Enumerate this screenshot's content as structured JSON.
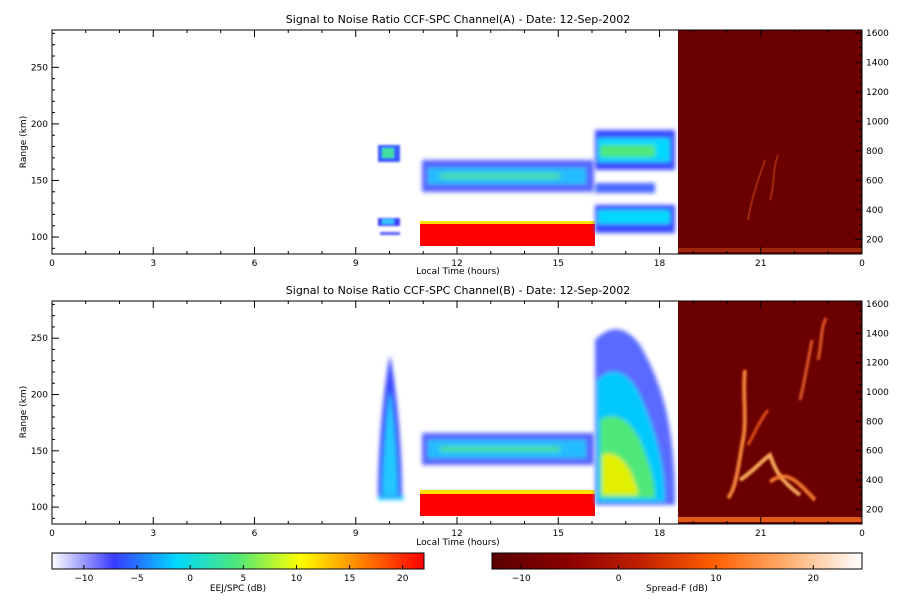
{
  "chart_data": [
    {
      "type": "heatmap",
      "title": "Signal to Noise Ratio CCF-SPC Channel(A) - Date: 12-Sep-2002",
      "xlabel": "Local Time (hours)",
      "ylabel": "Range (km)",
      "xlim": [
        0,
        24
      ],
      "ylim": [
        85,
        283
      ],
      "y2lim": [
        100,
        1620
      ],
      "x_ticks": [
        "0",
        "3",
        "6",
        "9",
        "12",
        "15",
        "18",
        "21",
        "0"
      ],
      "y_ticks": [
        100,
        150,
        200,
        250
      ],
      "y2_ticks": [
        200,
        400,
        600,
        800,
        1000,
        1200,
        1400,
        1600
      ],
      "regions": [
        {
          "name": "EEJ/SPC",
          "x": [
            9.6,
            10.2
          ],
          "y": [
            168,
            183
          ],
          "level": 2
        },
        {
          "name": "EEJ/SPC",
          "x": [
            9.6,
            10.2
          ],
          "y": [
            108,
            116
          ],
          "level": 4
        },
        {
          "name": "EEJ/SPC",
          "x": [
            10.9,
            16.0
          ],
          "y": [
            93,
            111
          ],
          "level": 22
        },
        {
          "name": "EEJ/SPC",
          "x": [
            10.9,
            16.0
          ],
          "y": [
            140,
            165
          ],
          "level": 2
        },
        {
          "name": "EEJ/SPC",
          "x": [
            16.0,
            18.6
          ],
          "y": [
            160,
            195
          ],
          "level": 5
        },
        {
          "name": "EEJ/SPC",
          "x": [
            16.0,
            18.6
          ],
          "y": [
            100,
            130
          ],
          "level": 3
        },
        {
          "name": "Spread-F",
          "x": [
            18.6,
            24.0
          ],
          "y": [
            200,
            700
          ],
          "level": -4
        }
      ]
    },
    {
      "type": "heatmap",
      "title": "Signal to Noise Ratio CCF-SPC Channel(B) - Date: 12-Sep-2002",
      "xlabel": "Local Time (hours)",
      "ylabel": "Range (km)",
      "xlim": [
        0,
        24
      ],
      "ylim": [
        85,
        283
      ],
      "y2lim": [
        100,
        1620
      ],
      "x_ticks": [
        "0",
        "3",
        "6",
        "9",
        "12",
        "15",
        "18",
        "21",
        "0"
      ],
      "y_ticks": [
        100,
        150,
        200,
        250
      ],
      "y2_ticks": [
        200,
        400,
        600,
        800,
        1000,
        1200,
        1400,
        1600
      ],
      "regions": [
        {
          "name": "EEJ/SPC",
          "x": [
            9.6,
            10.2
          ],
          "y": [
            100,
            220
          ],
          "level": 3
        },
        {
          "name": "EEJ/SPC",
          "x": [
            10.9,
            16.0
          ],
          "y": [
            93,
            111
          ],
          "level": 22
        },
        {
          "name": "EEJ/SPC",
          "x": [
            10.9,
            16.0
          ],
          "y": [
            140,
            168
          ],
          "level": 2
        },
        {
          "name": "EEJ/SPC",
          "x": [
            16.0,
            18.6
          ],
          "y": [
            98,
            270
          ],
          "level": 6
        },
        {
          "name": "Spread-F",
          "x": [
            20.0,
            23.5
          ],
          "y": [
            250,
            1450
          ],
          "level": 15
        }
      ]
    }
  ],
  "colorbars": [
    {
      "label": "EEJ/SPC (dB)",
      "range": [
        -13,
        22
      ],
      "ticks": [
        -10,
        -5,
        0,
        5,
        10,
        15,
        20
      ],
      "colors": [
        "#ffffff",
        "#3a3aff",
        "#00d8ff",
        "#50e878",
        "#ffff00",
        "#ff8000",
        "#ff0000"
      ]
    },
    {
      "label": "Spread-F (dB)",
      "range": [
        -13,
        25
      ],
      "ticks": [
        -10,
        0,
        10,
        20
      ],
      "colors": [
        "#5a0000",
        "#8b0000",
        "#c02000",
        "#ff6000",
        "#ffb070",
        "#ffffff"
      ]
    }
  ],
  "colors": {
    "spread_bg": "#6b0000",
    "axis": "#000000"
  }
}
